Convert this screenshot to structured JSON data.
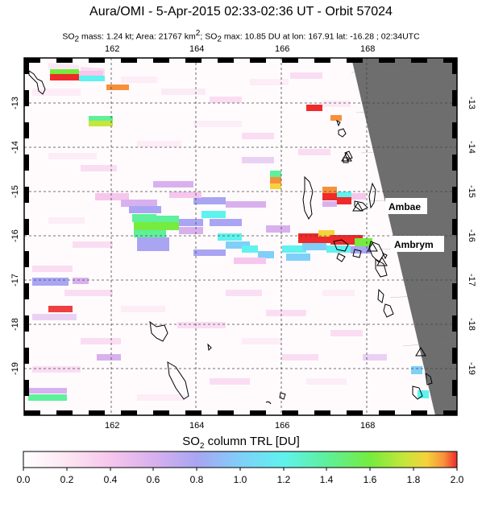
{
  "header": {
    "title": "Aura/OMI -  5-Apr-2015 02:33-02:36 UT - Orbit 57024",
    "subtitle_html_parts": [
      "SO",
      "2",
      " mass: 1.24 kt; Area: 21767 km",
      "2",
      "; SO",
      "2",
      " max: 10.85 DU at lon: 167.91 lat: -16.28 ; 02:34UTC"
    ]
  },
  "map": {
    "lon_ticks": [
      "162",
      "164",
      "166",
      "168"
    ],
    "lat_ticks": [
      "-13",
      "-14",
      "-15",
      "-16",
      "-17",
      "-18",
      "-19"
    ],
    "labels": {
      "ambae": "Ambae",
      "ambrym": "Ambrym"
    }
  },
  "colorbar": {
    "title_pre": "SO",
    "title_sub": "2",
    "title_post": " column TRL [DU]",
    "ticks": [
      "0.0",
      "0.2",
      "0.4",
      "0.6",
      "0.8",
      "1.0",
      "1.2",
      "1.4",
      "1.6",
      "1.8",
      "2.0"
    ],
    "colors": [
      "#ffffff",
      "#fde6f2",
      "#f6c6ec",
      "#d9b0ee",
      "#a9a5f3",
      "#7fcff9",
      "#5ff2ee",
      "#5ef09b",
      "#75ec3e",
      "#c7e53a",
      "#f6d23b",
      "#f7903a",
      "#ee2a2a"
    ]
  }
}
